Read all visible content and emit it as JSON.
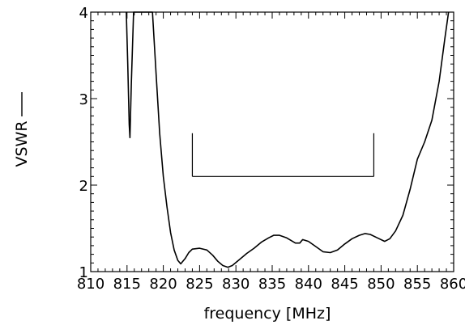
{
  "chart_data": {
    "type": "line",
    "xlabel": "frequency [MHz]",
    "ylabel": "VSWR",
    "xlim": [
      810,
      860
    ],
    "ylim": [
      1,
      4
    ],
    "x_ticks": [
      "810",
      "815",
      "820",
      "825",
      "830",
      "835",
      "840",
      "845",
      "850",
      "855",
      "860"
    ],
    "y_ticks": [
      "1",
      "2",
      "3",
      "4"
    ],
    "grid": false,
    "series": [
      {
        "color": "#000000",
        "points": [
          [
            814.9,
            4.0
          ],
          [
            815.1,
            3.4
          ],
          [
            815.3,
            2.7
          ],
          [
            815.4,
            2.55
          ],
          [
            815.6,
            3.2
          ],
          [
            815.9,
            4.0
          ],
          [
            818.5,
            4.0
          ],
          [
            819.0,
            3.3
          ],
          [
            819.5,
            2.6
          ],
          [
            820.0,
            2.1
          ],
          [
            820.5,
            1.75
          ],
          [
            821.0,
            1.45
          ],
          [
            821.5,
            1.25
          ],
          [
            822.0,
            1.13
          ],
          [
            822.4,
            1.09
          ],
          [
            823.0,
            1.15
          ],
          [
            823.5,
            1.22
          ],
          [
            824.0,
            1.26
          ],
          [
            825.0,
            1.27
          ],
          [
            826.0,
            1.25
          ],
          [
            826.8,
            1.19
          ],
          [
            827.5,
            1.12
          ],
          [
            828.2,
            1.07
          ],
          [
            828.9,
            1.05
          ],
          [
            829.5,
            1.07
          ],
          [
            830.5,
            1.14
          ],
          [
            831.5,
            1.21
          ],
          [
            832.5,
            1.27
          ],
          [
            833.5,
            1.34
          ],
          [
            834.5,
            1.39
          ],
          [
            835.2,
            1.42
          ],
          [
            836.0,
            1.42
          ],
          [
            837.0,
            1.39
          ],
          [
            838.2,
            1.33
          ],
          [
            838.8,
            1.33
          ],
          [
            839.2,
            1.37
          ],
          [
            840.0,
            1.35
          ],
          [
            841.0,
            1.29
          ],
          [
            842.0,
            1.23
          ],
          [
            843.0,
            1.22
          ],
          [
            844.0,
            1.25
          ],
          [
            845.0,
            1.32
          ],
          [
            846.0,
            1.38
          ],
          [
            847.0,
            1.42
          ],
          [
            847.8,
            1.44
          ],
          [
            848.5,
            1.43
          ],
          [
            849.5,
            1.39
          ],
          [
            850.5,
            1.35
          ],
          [
            851.2,
            1.38
          ],
          [
            852.0,
            1.47
          ],
          [
            853.0,
            1.65
          ],
          [
            854.0,
            1.95
          ],
          [
            855.0,
            2.3
          ],
          [
            856.0,
            2.5
          ],
          [
            857.0,
            2.75
          ],
          [
            858.0,
            3.2
          ],
          [
            858.8,
            3.7
          ],
          [
            859.3,
            4.0
          ]
        ]
      }
    ],
    "marker": {
      "x_start": 824,
      "x_end": 849,
      "y_top": 2.6,
      "y_bottom": 2.1
    }
  }
}
